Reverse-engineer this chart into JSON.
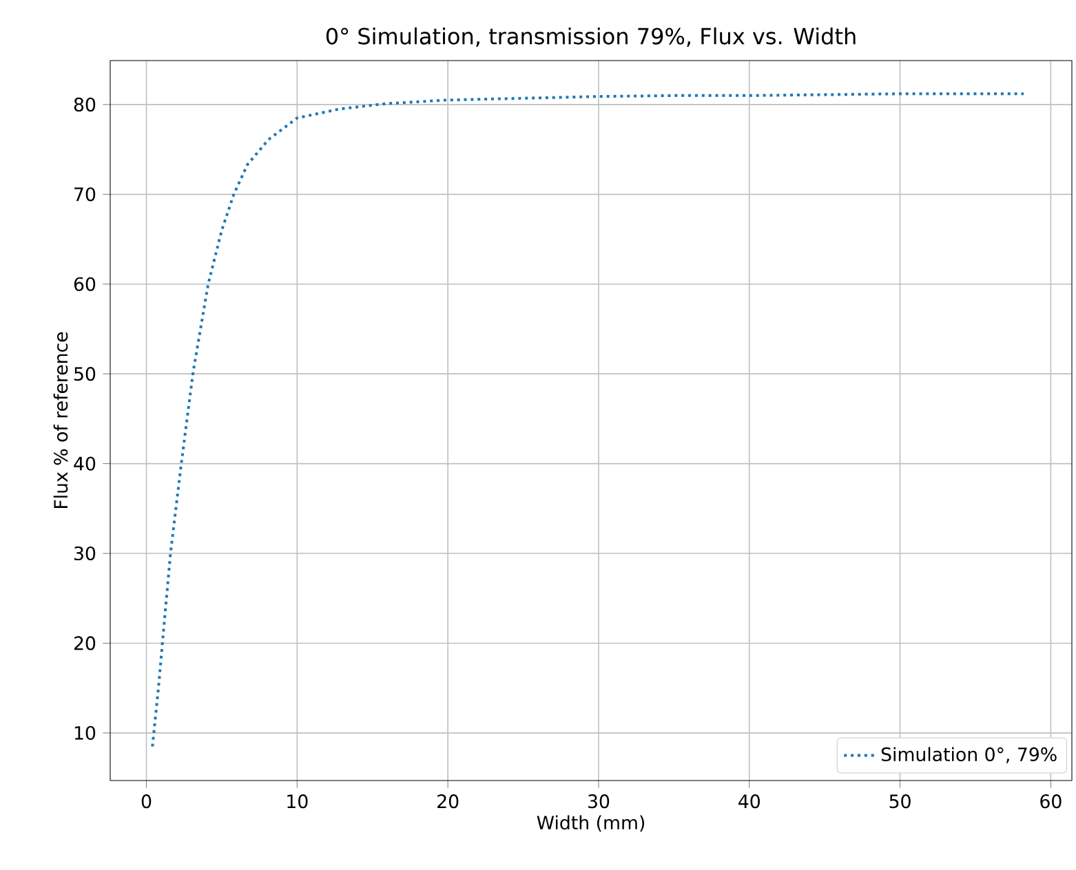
{
  "chart_data": {
    "type": "line",
    "title": "0° Simulation, transmission 79%, Flux vs. Width",
    "xlabel": "Width (mm)",
    "ylabel": "Flux % of reference",
    "xlim": [
      -2.4,
      61.4
    ],
    "ylim": [
      4.7,
      84.9
    ],
    "xticks": [
      0,
      10,
      20,
      30,
      40,
      50,
      60
    ],
    "yticks": [
      10,
      20,
      30,
      40,
      50,
      60,
      70,
      80
    ],
    "grid": true,
    "legend": "bottom right",
    "line_style": "dotted",
    "marker": "none",
    "series": [
      {
        "name": "Simulation 0°,   79%",
        "color": "#1f77b4",
        "x": [
          0.4,
          0.8,
          1.1,
          1.6,
          2.3,
          3.1,
          4.1,
          5.0,
          5.8,
          6.7,
          8.1,
          10,
          12.8,
          15.9,
          19.9,
          25,
          30,
          35,
          40,
          45,
          50,
          55,
          58.2
        ],
        "values": [
          8.5,
          15,
          20.7,
          30,
          39.8,
          50.2,
          60,
          66,
          70,
          73.3,
          76.1,
          78.5,
          79.5,
          80.1,
          80.5,
          80.7,
          80.9,
          81.0,
          81.0,
          81.1,
          81.2,
          81.2,
          81.2
        ]
      }
    ]
  }
}
